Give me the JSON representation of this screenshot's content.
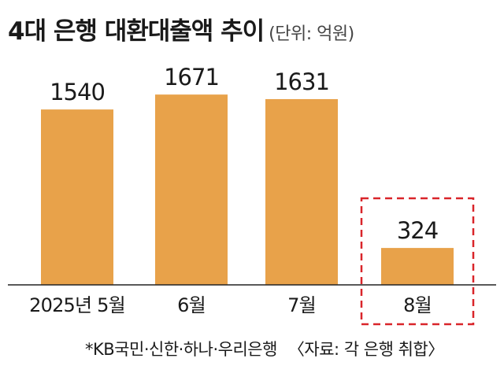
{
  "chart_data": {
    "type": "bar",
    "title": "4대 은행 대환대출액 추이",
    "unit": "(단위: 억원)",
    "categories": [
      "2025년 5월",
      "6월",
      "7월",
      "8월"
    ],
    "values": [
      1540,
      1671,
      1631,
      324
    ],
    "ylim": [
      0,
      1800
    ],
    "grid": false,
    "highlighted_category": "8월",
    "colors": {
      "bar": "#e8a24a",
      "highlight_box": "#d9252a",
      "baseline": "#222222"
    },
    "note": "*KB국민·신한·하나·우리은행",
    "source": "〈자료: 각 은행 취합〉"
  }
}
